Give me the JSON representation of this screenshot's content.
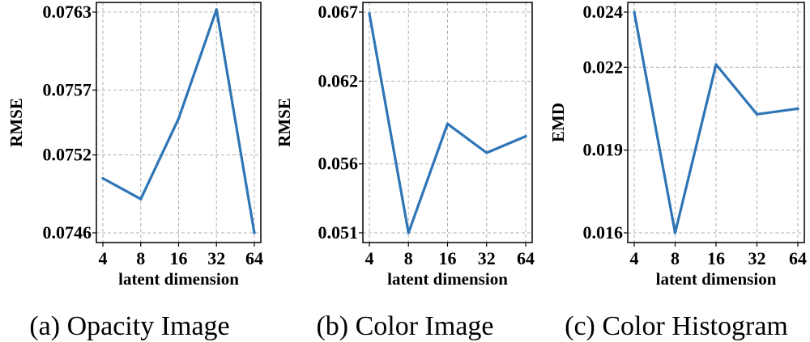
{
  "colors": {
    "series": "#2e75b6",
    "grid": "#b0b0b0"
  },
  "chart_data": [
    {
      "type": "line",
      "caption": "(a) Opacity Image",
      "xlabel": "latent dimension",
      "ylabel": "RMSE",
      "categories": [
        "4",
        "8",
        "16",
        "32",
        "64"
      ],
      "values": [
        0.07502,
        0.07486,
        0.07548,
        0.07632,
        0.0746
      ],
      "yticks": [
        0.0746,
        0.0752,
        0.0757,
        0.0763
      ],
      "ytick_labels": [
        "0.0746",
        "0.0752",
        "0.0757",
        "0.0763"
      ],
      "ylim": [
        0.0746,
        0.0763
      ],
      "grid": true
    },
    {
      "type": "line",
      "caption": "(b) Color Image",
      "xlabel": "latent dimension",
      "ylabel": "RMSE",
      "categories": [
        "4",
        "8",
        "16",
        "32",
        "64"
      ],
      "values": [
        0.0669,
        0.051,
        0.0589,
        0.0568,
        0.058
      ],
      "yticks": [
        0.051,
        0.056,
        0.062,
        0.067
      ],
      "ytick_labels": [
        "0.051",
        "0.056",
        "0.062",
        "0.067"
      ],
      "ylim": [
        0.051,
        0.067
      ],
      "grid": true
    },
    {
      "type": "line",
      "caption": "(c) Color Histogram",
      "xlabel": "latent dimension",
      "ylabel": "EMD",
      "categories": [
        "4",
        "8",
        "16",
        "32",
        "64"
      ],
      "values": [
        0.024,
        0.016,
        0.0221,
        0.0203,
        0.0205
      ],
      "yticks": [
        0.016,
        0.019,
        0.022,
        0.024
      ],
      "ytick_labels": [
        "0.016",
        "0.019",
        "0.022",
        "0.024"
      ],
      "ylim": [
        0.016,
        0.024
      ],
      "grid": true
    }
  ]
}
